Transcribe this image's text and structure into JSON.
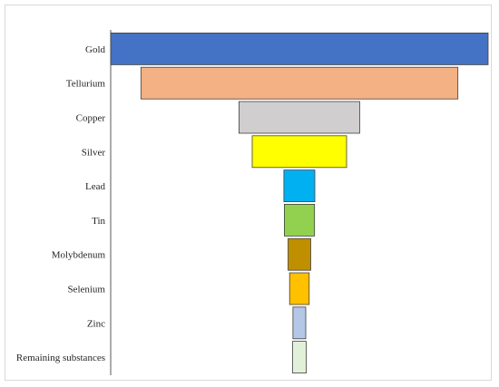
{
  "chart_data": {
    "type": "bar",
    "orientation": "horizontal-funnel",
    "title": "",
    "xlabel": "",
    "ylabel": "",
    "grid": false,
    "legend": "none",
    "categories": [
      "Gold",
      "Tellurium",
      "Copper",
      "Silver",
      "Lead",
      "Tin",
      "Molybdenum",
      "Selenium",
      "Zinc",
      "Remaining substances"
    ],
    "values": [
      100,
      84,
      32,
      25,
      8.2,
      8,
      6,
      5.2,
      3.4,
      3.6
    ],
    "colors": [
      "#4472c4",
      "#f4b183",
      "#d0cece",
      "#ffff00",
      "#00b0f0",
      "#92d050",
      "#bf8f00",
      "#ffc000",
      "#b4c7e7",
      "#e2f0d9"
    ]
  }
}
